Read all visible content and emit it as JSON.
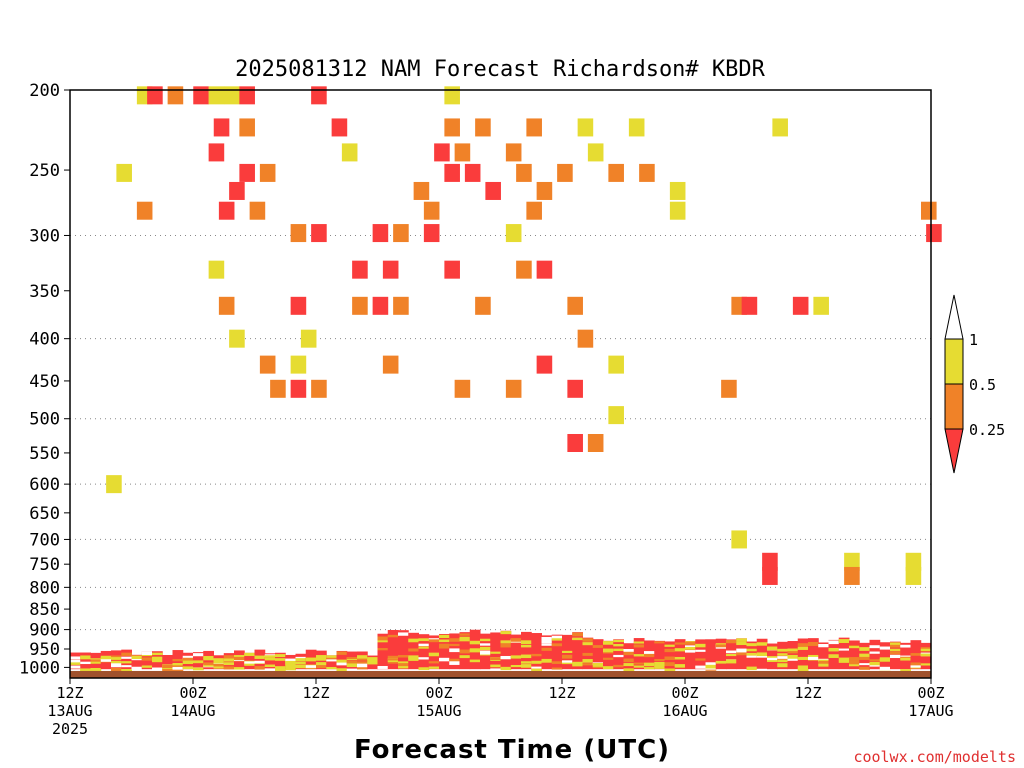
{
  "chart_data": {
    "type": "heatmap",
    "title": "2025081312 NAM Forecast Richardson# KBDR",
    "xlabel": "Forecast Time (UTC)",
    "credit": "coolwx.com/modelts",
    "x_ticks": [
      {
        "hour": 0,
        "line1": "12Z",
        "line2": "13AUG",
        "line3": "2025"
      },
      {
        "hour": 12,
        "line1": "00Z",
        "line2": "14AUG",
        "line3": ""
      },
      {
        "hour": 24,
        "line1": "12Z",
        "line2": "",
        "line3": ""
      },
      {
        "hour": 36,
        "line1": "00Z",
        "line2": "15AUG",
        "line3": ""
      },
      {
        "hour": 48,
        "line1": "12Z",
        "line2": "",
        "line3": ""
      },
      {
        "hour": 60,
        "line1": "00Z",
        "line2": "16AUG",
        "line3": ""
      },
      {
        "hour": 72,
        "line1": "12Z",
        "line2": "",
        "line3": ""
      },
      {
        "hour": 84,
        "line1": "00Z",
        "line2": "17AUG",
        "line3": ""
      }
    ],
    "x_range_hours": [
      0,
      84
    ],
    "y_axis": "pressure (mb), log scale, inverted",
    "ylim": [
      1030,
      200
    ],
    "y_ticks": [
      200,
      250,
      300,
      350,
      400,
      450,
      500,
      550,
      600,
      650,
      700,
      750,
      800,
      850,
      900,
      950,
      1000
    ],
    "y_gridlines": [
      300,
      400,
      500,
      600,
      700,
      800,
      900
    ],
    "legend": {
      "placement": "right",
      "labels": [
        "1",
        "0.5",
        "0.25"
      ],
      "bins": [
        {
          "range": ">1",
          "color": "#ffffff"
        },
        {
          "range": "0.5-1",
          "color": "#e6dc32"
        },
        {
          "range": "0.25-0.5",
          "color": "#f08228"
        },
        {
          "range": "<0.25",
          "color": "#fa3c3c"
        }
      ]
    },
    "colors": {
      "lt025": "#fa3c3c",
      "b025_05": "#f08228",
      "b05_1": "#e6dc32",
      "ground": "#a0522d"
    },
    "ground_pressure": 1010,
    "cells": [
      {
        "t": 7,
        "p": 203,
        "c": 2
      },
      {
        "t": 8,
        "p": 203,
        "c": 0
      },
      {
        "t": 10,
        "p": 203,
        "c": 1
      },
      {
        "t": 12.5,
        "p": 203,
        "c": 0
      },
      {
        "t": 14,
        "p": 203,
        "c": 2
      },
      {
        "t": 15.5,
        "p": 203,
        "c": 2
      },
      {
        "t": 17,
        "p": 203,
        "c": 0
      },
      {
        "t": 24,
        "p": 203,
        "c": 0
      },
      {
        "t": 37,
        "p": 203,
        "c": 2
      },
      {
        "t": 14.5,
        "p": 222,
        "c": 0
      },
      {
        "t": 17,
        "p": 222,
        "c": 1
      },
      {
        "t": 26,
        "p": 222,
        "c": 0
      },
      {
        "t": 37,
        "p": 222,
        "c": 1
      },
      {
        "t": 40,
        "p": 222,
        "c": 1
      },
      {
        "t": 45,
        "p": 222,
        "c": 1
      },
      {
        "t": 50,
        "p": 222,
        "c": 2
      },
      {
        "t": 55,
        "p": 222,
        "c": 2
      },
      {
        "t": 69,
        "p": 222,
        "c": 2
      },
      {
        "t": 14,
        "p": 238,
        "c": 0
      },
      {
        "t": 27,
        "p": 238,
        "c": 2
      },
      {
        "t": 36,
        "p": 238,
        "c": 0
      },
      {
        "t": 38,
        "p": 238,
        "c": 1
      },
      {
        "t": 43,
        "p": 238,
        "c": 1
      },
      {
        "t": 51,
        "p": 238,
        "c": 2
      },
      {
        "t": 17,
        "p": 252,
        "c": 0
      },
      {
        "t": 19,
        "p": 252,
        "c": 1
      },
      {
        "t": 37,
        "p": 252,
        "c": 0
      },
      {
        "t": 39,
        "p": 252,
        "c": 0
      },
      {
        "t": 44,
        "p": 252,
        "c": 1
      },
      {
        "t": 48,
        "p": 252,
        "c": 1
      },
      {
        "t": 53,
        "p": 252,
        "c": 1
      },
      {
        "t": 56,
        "p": 252,
        "c": 1
      },
      {
        "t": 5,
        "p": 252,
        "c": 2
      },
      {
        "t": 16,
        "p": 265,
        "c": 0
      },
      {
        "t": 34,
        "p": 265,
        "c": 1
      },
      {
        "t": 41,
        "p": 265,
        "c": 0
      },
      {
        "t": 46,
        "p": 265,
        "c": 1
      },
      {
        "t": 59,
        "p": 265,
        "c": 2
      },
      {
        "t": 7,
        "p": 280,
        "c": 1
      },
      {
        "t": 15,
        "p": 280,
        "c": 0
      },
      {
        "t": 18,
        "p": 280,
        "c": 1
      },
      {
        "t": 35,
        "p": 280,
        "c": 1
      },
      {
        "t": 45,
        "p": 280,
        "c": 1
      },
      {
        "t": 59,
        "p": 280,
        "c": 2
      },
      {
        "t": 83.5,
        "p": 280,
        "c": 1
      },
      {
        "t": 22,
        "p": 298,
        "c": 1
      },
      {
        "t": 24,
        "p": 298,
        "c": 0
      },
      {
        "t": 30,
        "p": 298,
        "c": 0
      },
      {
        "t": 32,
        "p": 298,
        "c": 1
      },
      {
        "t": 35,
        "p": 298,
        "c": 0
      },
      {
        "t": 43,
        "p": 298,
        "c": 2
      },
      {
        "t": 84,
        "p": 298,
        "c": 0
      },
      {
        "t": 28,
        "p": 330,
        "c": 0
      },
      {
        "t": 31,
        "p": 330,
        "c": 0
      },
      {
        "t": 37,
        "p": 330,
        "c": 0
      },
      {
        "t": 44,
        "p": 330,
        "c": 1
      },
      {
        "t": 46,
        "p": 330,
        "c": 0
      },
      {
        "t": 14,
        "p": 330,
        "c": 2
      },
      {
        "t": 15,
        "p": 365,
        "c": 1
      },
      {
        "t": 22,
        "p": 365,
        "c": 0
      },
      {
        "t": 28,
        "p": 365,
        "c": 1
      },
      {
        "t": 30,
        "p": 365,
        "c": 0
      },
      {
        "t": 32,
        "p": 365,
        "c": 1
      },
      {
        "t": 40,
        "p": 365,
        "c": 1
      },
      {
        "t": 49,
        "p": 365,
        "c": 1
      },
      {
        "t": 65,
        "p": 365,
        "c": 1
      },
      {
        "t": 66,
        "p": 365,
        "c": 0
      },
      {
        "t": 71,
        "p": 365,
        "c": 0
      },
      {
        "t": 73,
        "p": 365,
        "c": 2
      },
      {
        "t": 16,
        "p": 400,
        "c": 2
      },
      {
        "t": 23,
        "p": 400,
        "c": 2
      },
      {
        "t": 50,
        "p": 400,
        "c": 1
      },
      {
        "t": 19,
        "p": 430,
        "c": 1
      },
      {
        "t": 22,
        "p": 430,
        "c": 2
      },
      {
        "t": 31,
        "p": 430,
        "c": 1
      },
      {
        "t": 46,
        "p": 430,
        "c": 0
      },
      {
        "t": 53,
        "p": 430,
        "c": 2
      },
      {
        "t": 20,
        "p": 460,
        "c": 1
      },
      {
        "t": 22,
        "p": 460,
        "c": 0
      },
      {
        "t": 24,
        "p": 460,
        "c": 1
      },
      {
        "t": 38,
        "p": 460,
        "c": 1
      },
      {
        "t": 43,
        "p": 460,
        "c": 1
      },
      {
        "t": 49,
        "p": 460,
        "c": 0
      },
      {
        "t": 64,
        "p": 460,
        "c": 1
      },
      {
        "t": 53,
        "p": 495,
        "c": 2
      },
      {
        "t": 51,
        "p": 535,
        "c": 1
      },
      {
        "t": 49,
        "p": 535,
        "c": 0
      },
      {
        "t": 4,
        "p": 600,
        "c": 2
      },
      {
        "t": 65,
        "p": 700,
        "c": 2
      },
      {
        "t": 68,
        "p": 745,
        "c": 0
      },
      {
        "t": 76,
        "p": 745,
        "c": 2
      },
      {
        "t": 82,
        "p": 745,
        "c": 2
      },
      {
        "t": 68,
        "p": 775,
        "c": 0
      },
      {
        "t": 76,
        "p": 775,
        "c": 1
      },
      {
        "t": 82,
        "p": 775,
        "c": 2
      }
    ],
    "low_level_band": {
      "p_top": 900,
      "p_bottom": 1005,
      "dominant": "<0.25"
    }
  }
}
